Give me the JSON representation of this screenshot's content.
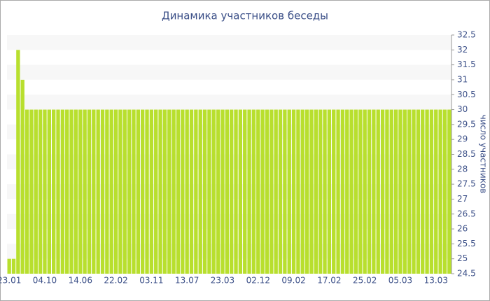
{
  "chart_data": {
    "type": "bar",
    "title": "Динамика участников беседы",
    "y_label": "число участников",
    "categories": [
      "23.01",
      null,
      null,
      null,
      null,
      null,
      null,
      null,
      "04.10",
      null,
      null,
      null,
      null,
      null,
      null,
      null,
      "14.06",
      null,
      null,
      null,
      null,
      null,
      null,
      null,
      "22.02",
      null,
      null,
      null,
      null,
      null,
      null,
      null,
      "03.11",
      null,
      null,
      null,
      null,
      null,
      null,
      null,
      "13.07",
      null,
      null,
      null,
      null,
      null,
      null,
      null,
      "23.03",
      null,
      null,
      null,
      null,
      null,
      null,
      null,
      "02.12",
      null,
      null,
      null,
      null,
      null,
      null,
      null,
      "09.02",
      null,
      null,
      null,
      null,
      null,
      null,
      null,
      "17.02",
      null,
      null,
      null,
      null,
      null,
      null,
      null,
      "25.02",
      null,
      null,
      null,
      null,
      null,
      null,
      null,
      "05.03",
      null,
      null,
      null,
      null,
      null,
      null,
      null,
      "13.03",
      null,
      null,
      null
    ],
    "values": [
      25,
      25,
      32,
      31,
      30,
      30,
      30,
      30,
      30,
      30,
      30,
      30,
      30,
      30,
      30,
      30,
      30,
      30,
      30,
      30,
      30,
      30,
      30,
      30,
      30,
      30,
      30,
      30,
      30,
      30,
      30,
      30,
      30,
      30,
      30,
      30,
      30,
      30,
      30,
      30,
      30,
      30,
      30,
      30,
      30,
      30,
      30,
      30,
      30,
      30,
      30,
      30,
      30,
      30,
      30,
      30,
      30,
      30,
      30,
      30,
      30,
      30,
      30,
      30,
      30,
      30,
      30,
      30,
      30,
      30,
      30,
      30,
      30,
      30,
      30,
      30,
      30,
      30,
      30,
      30,
      30,
      30,
      30,
      30,
      30,
      30,
      30,
      30,
      30,
      30,
      30,
      30,
      30,
      30,
      30,
      30,
      30,
      30,
      30,
      30
    ],
    "color": "#b8df2e",
    "ylim": [
      24.5,
      32.5
    ],
    "yticks": [
      24.5,
      25,
      25.5,
      26,
      26.5,
      27,
      27.5,
      28,
      28.5,
      29,
      29.5,
      30,
      30.5,
      31,
      31.5,
      32,
      32.5
    ],
    "grid": true
  }
}
